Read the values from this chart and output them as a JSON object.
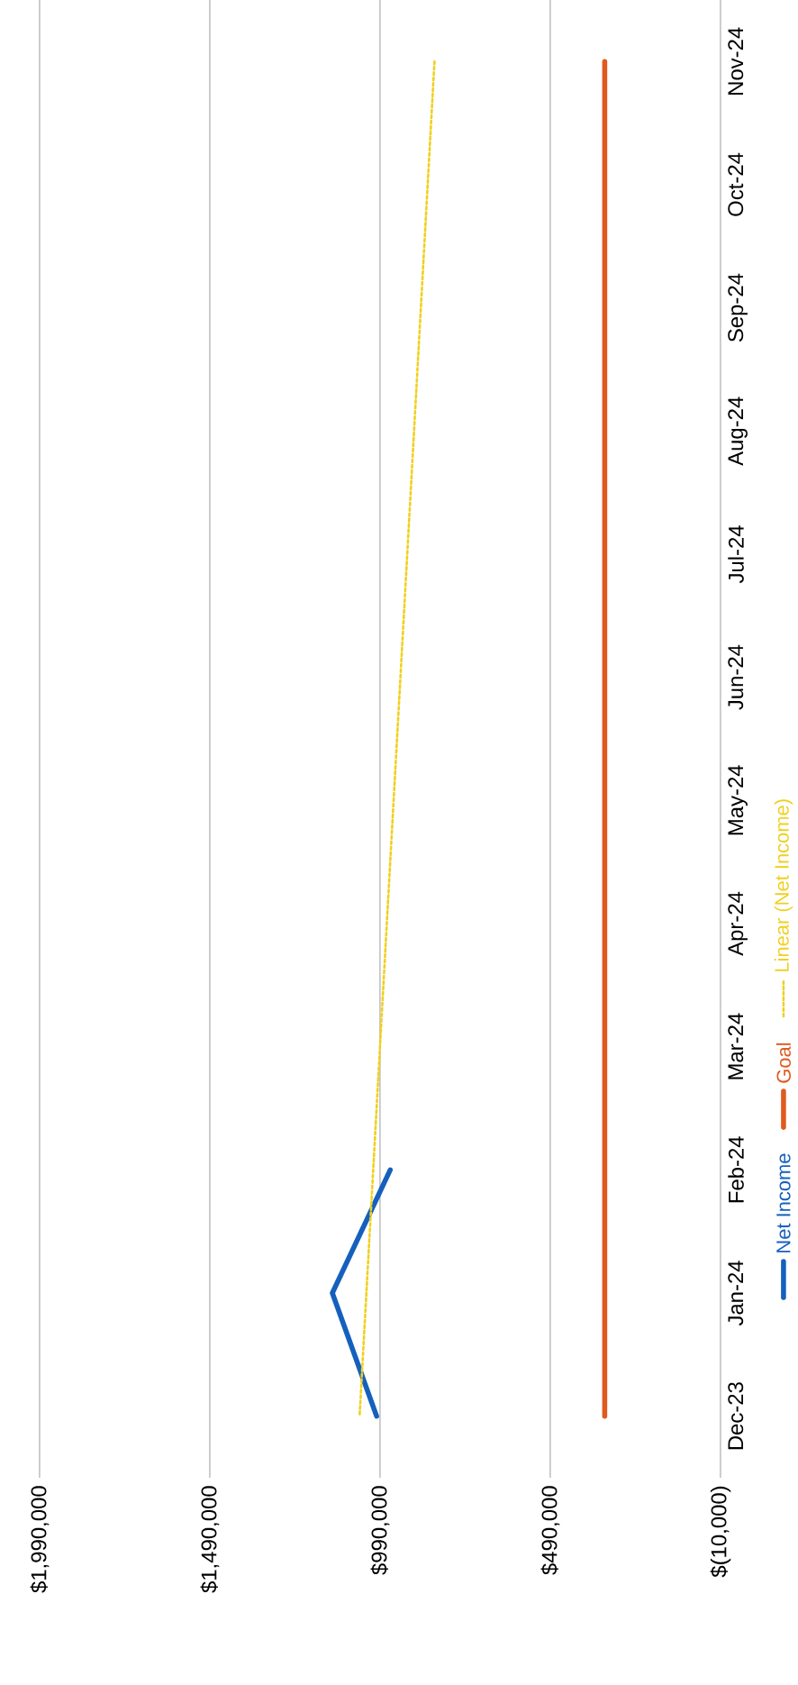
{
  "chart_data": {
    "type": "line",
    "orientation": "horizontal",
    "categories": [
      "Nov-24",
      "Oct-24",
      "Sep-24",
      "Aug-24",
      "Jul-24",
      "Jun-24",
      "May-24",
      "Apr-24",
      "Mar-24",
      "Feb-24",
      "Jan-24",
      "Dec-23"
    ],
    "xlim": [
      1990000,
      -10000
    ],
    "xticks": [
      {
        "value": 1990000,
        "label": "$1,990,000"
      },
      {
        "value": 1490000,
        "label": "$1,490,000"
      },
      {
        "value": 990000,
        "label": "$990,000"
      },
      {
        "value": 490000,
        "label": "$490,000"
      },
      {
        "value": -10000,
        "label": "$(10,000)"
      }
    ],
    "grid": "x",
    "legend": "right",
    "marker": "none",
    "series": [
      {
        "name": "Net Income",
        "color": "#1560bd",
        "values": [
          null,
          null,
          null,
          null,
          null,
          null,
          null,
          null,
          null,
          960000,
          1130000,
          1000000
        ]
      },
      {
        "name": "Goal",
        "color": "#e05a1e",
        "values": [
          330000,
          330000,
          330000,
          330000,
          330000,
          330000,
          330000,
          330000,
          330000,
          330000,
          330000,
          330000
        ]
      },
      {
        "name": "Linear (Net Income)",
        "color": "#f0d020",
        "line_style": "dotted",
        "values": [
          830000,
          850000,
          870000,
          890000,
          910000,
          930000,
          950000,
          970000,
          990000,
          1010000,
          1030000,
          1050000
        ]
      }
    ]
  }
}
